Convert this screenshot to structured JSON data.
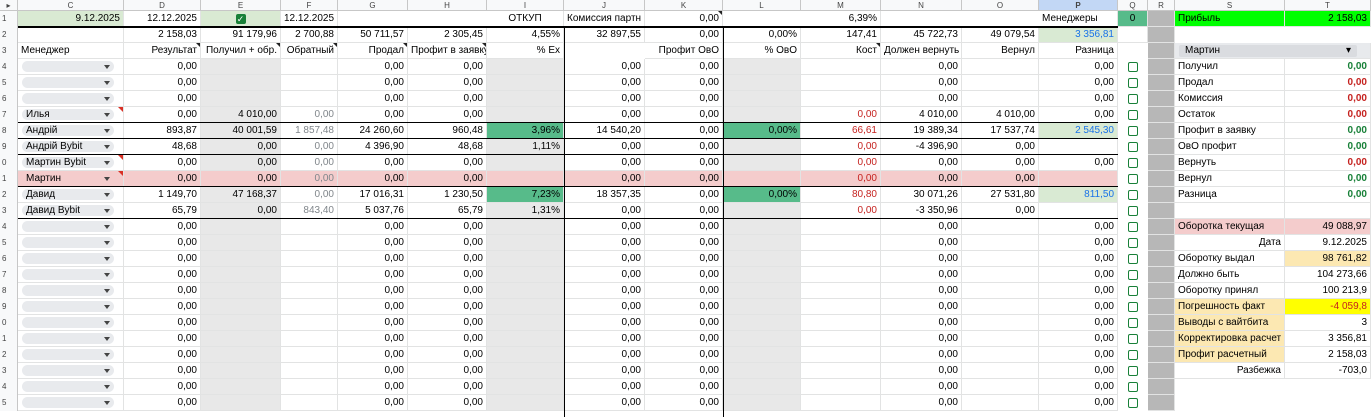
{
  "columns": [
    "C",
    "D",
    "E",
    "F",
    "G",
    "H",
    "I",
    "J",
    "K",
    "L",
    "M",
    "N",
    "O",
    "P",
    "Q",
    "R",
    "S",
    "T"
  ],
  "row1": {
    "c": "9.12.2025",
    "d": "12.12.2025",
    "f": "12.12.2025",
    "i": "ОТКУП",
    "j": "Комиссия партн",
    "k": "0,00",
    "m": "6,39%",
    "p": "Менеджеры",
    "q": "0",
    "s": "Прибыль",
    "t": "2 158,03"
  },
  "row2": {
    "d": "2 158,03",
    "e": "91 179,96",
    "f": "2 700,88",
    "g": "50 711,57",
    "h": "2 305,45",
    "i": "4,55%",
    "j": "32 897,55",
    "k": "0,00",
    "l": "0,00%",
    "m": "147,41",
    "n": "45 722,73",
    "o": "49 079,54",
    "p": "3 356,81"
  },
  "headers": {
    "c": "Менеджер",
    "d": "Результат",
    "e": "Получил + обр.",
    "f": "Обратный",
    "g": "Продал",
    "h": "Профит в заявку",
    "i": "% Ex",
    "k": "Профит ОвО",
    "l": "% ОвО",
    "m": "Кост",
    "n": "Должен вернуть",
    "o": "Вернул",
    "p": "Разница"
  },
  "people": [
    {
      "c": "",
      "d": "0,00",
      "g": "0,00",
      "h": "0,00",
      "j": "0,00",
      "k": "0,00",
      "n": "0,00",
      "p": "0,00"
    },
    {
      "c": "",
      "d": "0,00",
      "g": "0,00",
      "h": "0,00",
      "j": "0,00",
      "k": "0,00",
      "n": "0,00",
      "p": "0,00"
    },
    {
      "c": "",
      "d": "0,00",
      "g": "0,00",
      "h": "0,00",
      "j": "0,00",
      "k": "0,00",
      "n": "0,00",
      "p": "0,00"
    },
    {
      "c": "Илья",
      "d": "0,00",
      "e": "4 010,00",
      "f": "0,00",
      "g": "0,00",
      "h": "0,00",
      "j": "0,00",
      "k": "0,00",
      "m": "0,00",
      "n": "4 010,00",
      "o": "4 010,00",
      "p": "0,00"
    },
    {
      "c": "Андрій",
      "d": "893,87",
      "e": "40 001,59",
      "f": "1 857,48",
      "g": "24 260,60",
      "h": "960,48",
      "i": "3,96%",
      "j": "14 540,20",
      "k": "0,00",
      "l": "0,00%",
      "m": "66,61",
      "n": "19 389,34",
      "o": "17 537,74",
      "p": "2 545,30"
    },
    {
      "c": "Андрій Bybit",
      "d": "48,68",
      "e": "0,00",
      "f": "0,00",
      "g": "4 396,90",
      "h": "48,68",
      "i": "1,11%",
      "j": "0,00",
      "k": "0,00",
      "m": "0,00",
      "n": "-4 396,90",
      "o": "0,00",
      "p": ""
    },
    {
      "c": "Мартин Bybit",
      "d": "0,00",
      "e": "0,00",
      "f": "0,00",
      "g": "0,00",
      "h": "0,00",
      "j": "0,00",
      "k": "0,00",
      "m": "0,00",
      "n": "0,00",
      "o": "0,00",
      "p": "0,00"
    },
    {
      "c": "Мартин",
      "d": "0,00",
      "e": "0,00",
      "f": "0,00",
      "g": "0,00",
      "h": "0,00",
      "j": "0,00",
      "k": "0,00",
      "m": "0,00",
      "n": "0,00",
      "o": "0,00",
      "p": ""
    },
    {
      "c": "Давид",
      "d": "1 149,70",
      "e": "47 168,37",
      "f": "0,00",
      "g": "17 016,31",
      "h": "1 230,50",
      "i": "7,23%",
      "j": "18 357,35",
      "k": "0,00",
      "l": "0,00%",
      "m": "80,80",
      "n": "30 071,26",
      "o": "27 531,80",
      "p": "811,50"
    },
    {
      "c": "Давид Bybit",
      "d": "65,79",
      "e": "0,00",
      "f": "843,40",
      "g": "5 037,76",
      "h": "65,79",
      "i": "1,31%",
      "j": "0,00",
      "k": "0,00",
      "m": "0,00",
      "n": "-3 350,96",
      "o": "0,00",
      "p": ""
    }
  ],
  "empty_row": {
    "d": "0,00",
    "g": "0,00",
    "h": "0,00",
    "j": "0,00",
    "k": "0,00",
    "n": "0,00",
    "p": "0,00"
  },
  "panel": {
    "dropdown": "Мартин",
    "summary": [
      {
        "label": "Получил",
        "value": "0,00"
      },
      {
        "label": "Продал",
        "value": "0,00"
      },
      {
        "label": "Комиссия",
        "value": "0,00"
      },
      {
        "label": "Остаток",
        "value": "0,00"
      },
      {
        "label": "Профит в заявку",
        "value": "0,00"
      },
      {
        "label": "ОвО профит",
        "value": "0,00"
      },
      {
        "label": "Вернуть",
        "value": "0,00"
      },
      {
        "label": "Вернул",
        "value": "0,00"
      },
      {
        "label": "Разница",
        "value": "0,00"
      }
    ],
    "turnover": [
      {
        "label": "Оборотка текущая",
        "value": "49 088,97"
      },
      {
        "label": "Дата",
        "value": "9.12.2025"
      },
      {
        "label": "Оборотку выдал",
        "value": "98 761,82"
      },
      {
        "label": "Должно быть",
        "value": "104 273,66"
      },
      {
        "label": "Оборотку принял",
        "value": "100 213,9"
      },
      {
        "label": "Погрешность факт",
        "value": "-4 059,8"
      },
      {
        "label": "Выводы с вайтбита",
        "value": "3"
      },
      {
        "label": "Корректировка расчет",
        "value": "3 356,81"
      },
      {
        "label": "Профит расчетный",
        "value": "2 158,03"
      },
      {
        "label": "Разбежка",
        "value": "-703,0"
      }
    ]
  },
  "colors": {
    "light_green": "#d9ead3",
    "green": "#57bb8a",
    "bright_green": "#00ff00",
    "pink": "#f4cccc",
    "gray": "#e8e8e8",
    "mid_gray": "#b7b7b7",
    "yellow": "#ffff00",
    "orange_pale": "#fce8b2",
    "selected_col": "#c2d7f5"
  }
}
